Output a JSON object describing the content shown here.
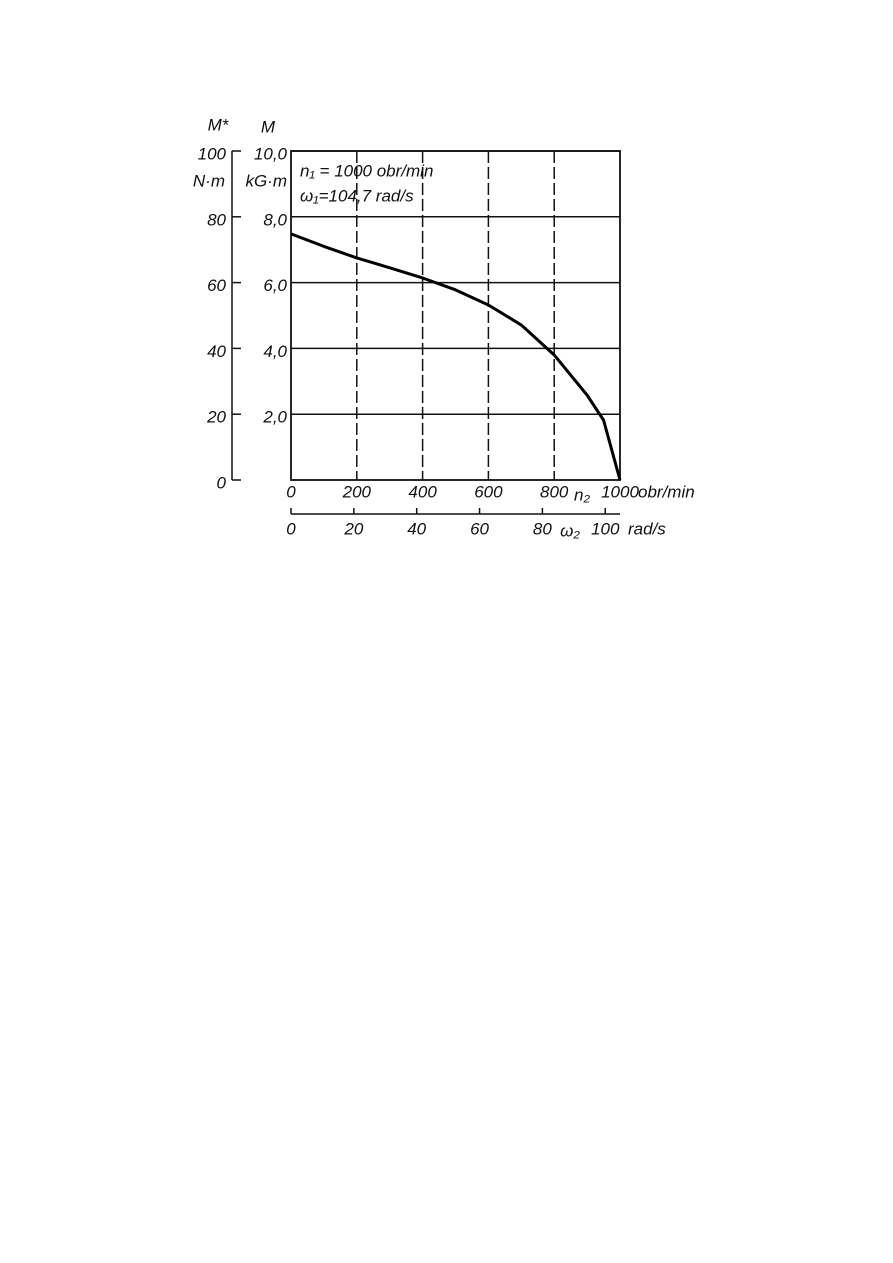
{
  "chart_data": {
    "type": "line",
    "y2label": "M*",
    "y2unit": "N·m",
    "ylabel": "M",
    "yunit": "kG·m",
    "annotations": [
      "n₁ = 1000 obr/min",
      "ω₁=104,7 rad/s"
    ],
    "xlabel": "n₂",
    "xunit": "obr/min",
    "x2label": "ω₂",
    "x2unit": "rad/s",
    "x": [
      0,
      100,
      200,
      300,
      400,
      500,
      600,
      700,
      800,
      900,
      950,
      1000
    ],
    "values": [
      7.48,
      7.1,
      6.75,
      6.45,
      6.14,
      5.78,
      5.32,
      4.71,
      3.8,
      2.58,
      1.82,
      0
    ],
    "color": "#000000",
    "xlim": [
      0,
      1000
    ],
    "xticks": [
      0,
      200,
      400,
      600,
      800,
      1000
    ],
    "ylim": [
      0,
      10
    ],
    "yticks": [
      {
        "value": 2,
        "label": "2,0"
      },
      {
        "value": 4,
        "label": "4,0"
      },
      {
        "value": 6,
        "label": "6,0"
      },
      {
        "value": 8,
        "label": "8,0"
      },
      {
        "value": 10,
        "label": "10,0"
      }
    ],
    "y2lim": [
      0,
      100
    ],
    "y2ticks": [
      0,
      20,
      40,
      60,
      80,
      100
    ],
    "x2lim": [
      0,
      104.7
    ],
    "x2ticks": [
      0,
      20,
      40,
      60,
      80,
      100
    ],
    "grid": true
  }
}
